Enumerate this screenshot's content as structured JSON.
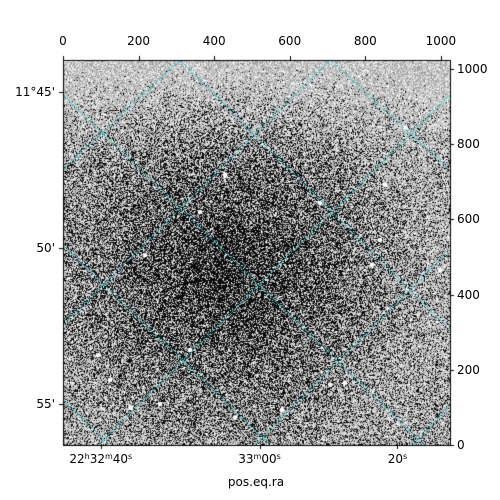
{
  "chart_data": {
    "type": "other",
    "description_visible": false,
    "xlabel": "pos.eq.ra",
    "ylabel": "",
    "top_axis": {
      "ticks": [
        0,
        200,
        400,
        600,
        800,
        1000
      ],
      "range": [
        0,
        1024
      ]
    },
    "right_axis": {
      "ticks": [
        0,
        200,
        400,
        600,
        800,
        1000
      ],
      "range": [
        0,
        1024
      ]
    },
    "ra_ticks": [
      {
        "h": "22",
        "m": "32",
        "s": "40",
        "pixel": 100
      },
      {
        "h": "",
        "m": "33",
        "s": "00",
        "pixel": 520
      },
      {
        "h": "",
        "m": "",
        "s": "20",
        "pixel": 885
      }
    ],
    "dec_ticks": [
      {
        "label": "11°45'",
        "pixel": 940
      },
      {
        "label": "50'",
        "pixel": 525
      },
      {
        "label": "55'",
        "pixel": 110
      }
    ],
    "grid_color": "#00d5d5",
    "grid": true
  }
}
